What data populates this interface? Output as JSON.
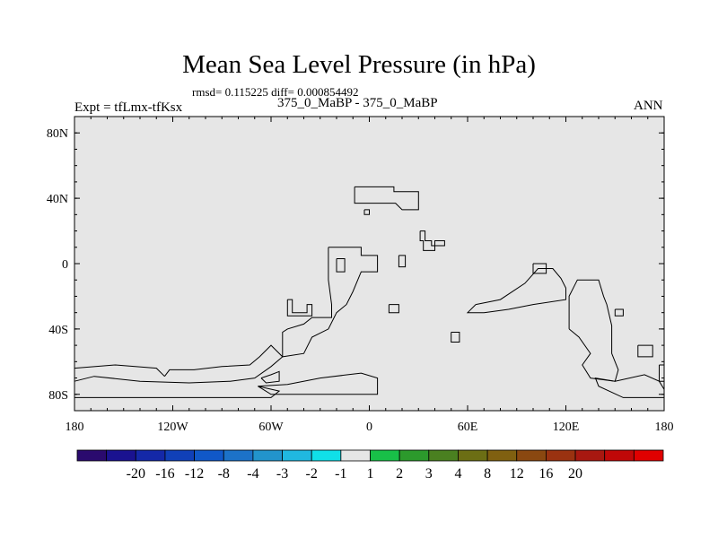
{
  "title": "Mean Sea Level Pressure (in hPa)",
  "stats": "rmsd= 0.115225 diff= 0.000854492",
  "left_label": "Expt = tfLmx-tfKsx",
  "center_label": "375_0_MaBP - 375_0_MaBP",
  "right_label": "ANN",
  "map": {
    "background_color": "#e6e6e6",
    "x_ticks": [
      {
        "lon": -180,
        "label": "180"
      },
      {
        "lon": -120,
        "label": "120W"
      },
      {
        "lon": -60,
        "label": "60W"
      },
      {
        "lon": 0,
        "label": "0"
      },
      {
        "lon": 60,
        "label": "60E"
      },
      {
        "lon": 120,
        "label": "120E"
      },
      {
        "lon": 180,
        "label": "180"
      }
    ],
    "y_ticks": [
      {
        "lat": 80,
        "label": "80N"
      },
      {
        "lat": 40,
        "label": "40N"
      },
      {
        "lat": 0,
        "label": "0"
      },
      {
        "lat": -40,
        "label": "40S"
      },
      {
        "lat": -80,
        "label": "80S"
      }
    ],
    "lon_range": [
      -180,
      180
    ],
    "lat_range": [
      -90,
      90
    ],
    "coastlines": [
      [
        [
          -9,
          47
        ],
        [
          15,
          47
        ],
        [
          15,
          44
        ],
        [
          30,
          44
        ],
        [
          30,
          33
        ],
        [
          20,
          33
        ],
        [
          16,
          37
        ],
        [
          -9,
          37
        ],
        [
          -9,
          47
        ]
      ],
      [
        [
          -3,
          33
        ],
        [
          0,
          33
        ],
        [
          0,
          30
        ],
        [
          -3,
          30
        ],
        [
          -3,
          33
        ]
      ],
      [
        [
          31,
          20
        ],
        [
          34,
          20
        ],
        [
          34,
          14
        ],
        [
          38,
          14
        ],
        [
          38,
          11
        ],
        [
          46,
          11
        ],
        [
          46,
          14
        ],
        [
          40,
          14
        ],
        [
          40,
          8
        ],
        [
          33,
          8
        ],
        [
          33,
          14
        ],
        [
          31,
          14
        ],
        [
          31,
          20
        ]
      ],
      [
        [
          -25,
          10
        ],
        [
          -5,
          10
        ],
        [
          -5,
          5
        ],
        [
          5,
          5
        ],
        [
          5,
          -5
        ],
        [
          -5,
          -5
        ],
        [
          -10,
          -17
        ],
        [
          -14,
          -25
        ],
        [
          -20,
          -30
        ],
        [
          -25,
          -40
        ],
        [
          -35,
          -45
        ],
        [
          -40,
          -55
        ],
        [
          -53,
          -57
        ],
        [
          -53,
          -42
        ],
        [
          -50,
          -40
        ],
        [
          -40,
          -37
        ],
        [
          -35,
          -33
        ],
        [
          -23,
          -33
        ],
        [
          -23,
          -25
        ],
        [
          -25,
          -10
        ],
        [
          -25,
          10
        ]
      ],
      [
        [
          -20,
          3
        ],
        [
          -15,
          3
        ],
        [
          -15,
          -5
        ],
        [
          -20,
          -5
        ],
        [
          -20,
          3
        ]
      ],
      [
        [
          18,
          5
        ],
        [
          22,
          5
        ],
        [
          22,
          -2
        ],
        [
          18,
          -2
        ],
        [
          18,
          5
        ]
      ],
      [
        [
          12,
          -25
        ],
        [
          18,
          -25
        ],
        [
          18,
          -30
        ],
        [
          12,
          -30
        ],
        [
          12,
          -25
        ]
      ],
      [
        [
          -50,
          -22
        ],
        [
          -47,
          -22
        ],
        [
          -47,
          -30
        ],
        [
          -38,
          -30
        ],
        [
          -38,
          -25
        ],
        [
          -35,
          -25
        ],
        [
          -35,
          -32
        ],
        [
          -50,
          -32
        ],
        [
          -50,
          -22
        ]
      ],
      [
        [
          65,
          -25
        ],
        [
          80,
          -22
        ],
        [
          95,
          -12
        ],
        [
          103,
          -3
        ],
        [
          112,
          -3
        ],
        [
          117,
          -9
        ],
        [
          120,
          -15
        ],
        [
          120,
          -22
        ],
        [
          100,
          -25
        ],
        [
          85,
          -28
        ],
        [
          70,
          -30
        ],
        [
          60,
          -30
        ],
        [
          65,
          -25
        ]
      ],
      [
        [
          100,
          0
        ],
        [
          108,
          0
        ],
        [
          108,
          -6
        ],
        [
          100,
          -6
        ],
        [
          100,
          0
        ]
      ],
      [
        [
          122,
          -40
        ],
        [
          122,
          -20
        ],
        [
          127,
          -10
        ],
        [
          140,
          -10
        ],
        [
          143,
          -20
        ],
        [
          145,
          -25
        ],
        [
          148,
          -38
        ],
        [
          148,
          -55
        ],
        [
          152,
          -65
        ],
        [
          150,
          -72
        ],
        [
          135,
          -70
        ],
        [
          130,
          -62
        ],
        [
          135,
          -55
        ],
        [
          128,
          -45
        ],
        [
          122,
          -40
        ]
      ],
      [
        [
          50,
          -42
        ],
        [
          55,
          -42
        ],
        [
          55,
          -48
        ],
        [
          50,
          -48
        ],
        [
          50,
          -42
        ]
      ],
      [
        [
          150,
          -28
        ],
        [
          155,
          -28
        ],
        [
          155,
          -32
        ],
        [
          150,
          -32
        ],
        [
          150,
          -28
        ]
      ],
      [
        [
          164,
          -50
        ],
        [
          173,
          -50
        ],
        [
          173,
          -57
        ],
        [
          164,
          -57
        ],
        [
          164,
          -50
        ]
      ],
      [
        [
          177,
          -62
        ],
        [
          180,
          -62
        ],
        [
          180,
          -72
        ],
        [
          177,
          -72
        ],
        [
          177,
          -62
        ]
      ],
      [
        [
          -125,
          -69
        ],
        [
          -122,
          -65
        ],
        [
          -107,
          -65
        ],
        [
          -90,
          -63
        ],
        [
          -73,
          -62
        ],
        [
          -67,
          -57
        ],
        [
          -60,
          -50
        ],
        [
          -53,
          -57
        ],
        [
          -60,
          -63
        ],
        [
          -70,
          -70
        ],
        [
          -85,
          -72
        ],
        [
          -110,
          -73
        ],
        [
          -140,
          -72
        ],
        [
          -168,
          -69
        ],
        [
          -180,
          -72
        ]
      ],
      [
        [
          -180,
          -64
        ],
        [
          -155,
          -62
        ],
        [
          -130,
          -64
        ],
        [
          -125,
          -69
        ]
      ],
      [
        [
          -66,
          -70
        ],
        [
          -60,
          -68
        ],
        [
          -55,
          -66
        ],
        [
          -55,
          -72
        ],
        [
          -63,
          -73
        ],
        [
          -66,
          -70
        ]
      ],
      [
        [
          -68,
          -75
        ],
        [
          -50,
          -74
        ],
        [
          -30,
          -70
        ],
        [
          -5,
          -67
        ],
        [
          5,
          -70
        ],
        [
          5,
          -80
        ],
        [
          -10,
          -80
        ],
        [
          -30,
          -80
        ],
        [
          -60,
          -80
        ],
        [
          -68,
          -75
        ]
      ],
      [
        [
          -180,
          -82
        ],
        [
          -60,
          -82
        ],
        [
          -55,
          -78
        ],
        [
          -68,
          -75
        ]
      ],
      [
        [
          180,
          -82
        ],
        [
          155,
          -82
        ],
        [
          140,
          -75
        ],
        [
          138,
          -70
        ],
        [
          150,
          -72
        ],
        [
          168,
          -68
        ],
        [
          177,
          -72
        ],
        [
          180,
          -77
        ]
      ]
    ]
  },
  "colorbar": {
    "colors": [
      "#2a0a6e",
      "#1a1290",
      "#1428a8",
      "#1040b8",
      "#1058c8",
      "#1c72c8",
      "#2294cc",
      "#20b8e0",
      "#10e0e8",
      "#e6e6e6",
      "#18c048",
      "#2c9a2c",
      "#4a8020",
      "#6c6e14",
      "#806010",
      "#8a4810",
      "#9a3210",
      "#a81810",
      "#c00808",
      "#e00000"
    ],
    "labels": [
      "-20",
      "-16",
      "-12",
      "-8",
      "-4",
      "-3",
      "-2",
      "-1",
      "1",
      "2",
      "3",
      "4",
      "8",
      "12",
      "16",
      "20"
    ]
  }
}
